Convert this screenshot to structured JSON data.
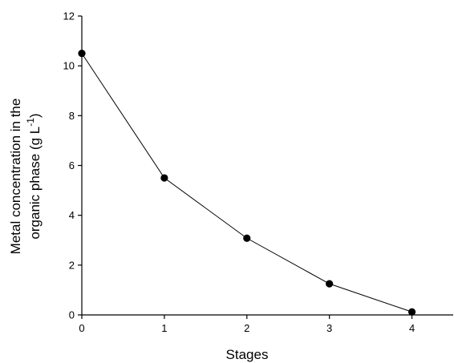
{
  "chart_data": {
    "type": "line",
    "title": "",
    "xlabel": "Stages",
    "ylabel": {
      "line1": "Metal concentration in the",
      "line2_main": "organic phase (g L",
      "line2_sup": "-1",
      "line2_end": ")"
    },
    "x": [
      0,
      1,
      2,
      3,
      4
    ],
    "series": [
      {
        "values": [
          10.5,
          5.5,
          3.08,
          1.25,
          0.12
        ]
      }
    ],
    "xlim": [
      0,
      4.5
    ],
    "ylim": [
      0,
      12
    ],
    "xticks": [
      0,
      1,
      2,
      3,
      4
    ],
    "yticks": [
      0,
      2,
      4,
      6,
      8,
      10,
      12
    ],
    "grid": false,
    "legend": "none",
    "marker": "filled-circle",
    "line_color": "#000000",
    "marker_color": "#000000"
  }
}
